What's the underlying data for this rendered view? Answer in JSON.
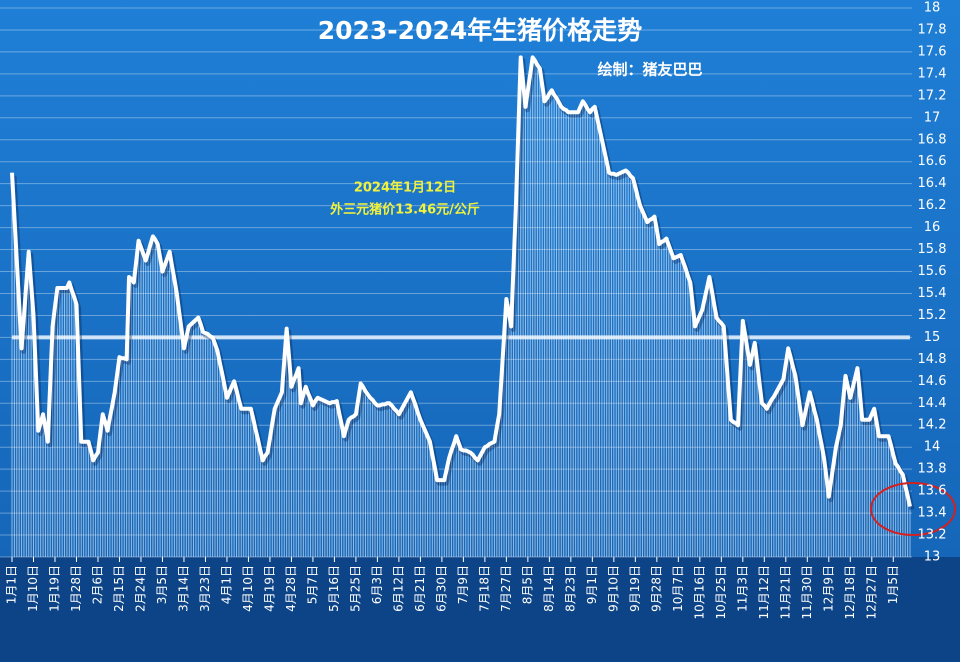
{
  "chart_data": {
    "type": "line",
    "title": "2023-2024年生猪价格走势",
    "subtitle": "绘制：猪友巴巴",
    "annotations": [
      "2024年1月12日",
      "外三元猪价13.46元/公斤"
    ],
    "color": "#ffffff",
    "reference_line": 15,
    "ylim": [
      13,
      18
    ],
    "yticks": [
      13,
      13.2,
      13.4,
      13.6,
      13.8,
      14,
      14.2,
      14.4,
      14.6,
      14.8,
      15,
      15.2,
      15.4,
      15.6,
      15.8,
      16,
      16.2,
      16.4,
      16.6,
      16.8,
      17,
      17.2,
      17.4,
      17.6,
      17.8,
      18
    ],
    "grid": true,
    "categories": [
      "1月1日",
      null,
      null,
      null,
      null,
      null,
      null,
      null,
      null,
      "1月10日",
      null,
      null,
      null,
      null,
      null,
      null,
      null,
      null,
      "1月19日",
      null,
      null,
      null,
      null,
      null,
      null,
      null,
      null,
      "1月28日",
      null,
      null,
      null,
      null,
      null,
      null,
      null,
      null,
      "2月6日",
      null,
      null,
      null,
      null,
      null,
      null,
      null,
      null,
      "2月15日",
      null,
      null,
      null,
      null,
      null,
      null,
      null,
      null,
      "2月24日",
      null,
      null,
      null,
      null,
      null,
      null,
      null,
      null,
      "3月5日",
      null,
      null,
      null,
      null,
      null,
      null,
      null,
      null,
      "3月14日",
      null,
      null,
      null,
      null,
      null,
      null,
      null,
      null,
      "3月23日",
      null,
      null,
      null,
      null,
      null,
      null,
      null,
      null,
      "4月1日",
      null,
      null,
      null,
      null,
      null,
      null,
      null,
      null,
      "4月10日",
      null,
      null,
      null,
      null,
      null,
      null,
      null,
      null,
      "4月19日",
      null,
      null,
      null,
      null,
      null,
      null,
      null,
      null,
      "4月28日",
      null,
      null,
      null,
      null,
      null,
      null,
      null,
      null,
      "5月7日",
      null,
      null,
      null,
      null,
      null,
      null,
      null,
      null,
      "5月16日",
      null,
      null,
      null,
      null,
      null,
      null,
      null,
      null,
      "5月25日",
      null,
      null,
      null,
      null,
      null,
      null,
      null,
      null,
      "6月3日",
      null,
      null,
      null,
      null,
      null,
      null,
      null,
      null,
      "6月12日",
      null,
      null,
      null,
      null,
      null,
      null,
      null,
      null,
      "6月21日",
      null,
      null,
      null,
      null,
      null,
      null,
      null,
      null,
      "6月30日",
      null,
      null,
      null,
      null,
      null,
      null,
      null,
      null,
      "7月9日",
      null,
      null,
      null,
      null,
      null,
      null,
      null,
      null,
      "7月18日",
      null,
      null,
      null,
      null,
      null,
      null,
      null,
      null,
      "7月27日",
      null,
      null,
      null,
      null,
      null,
      null,
      null,
      null,
      "8月5日",
      null,
      null,
      null,
      null,
      null,
      null,
      null,
      null,
      "8月14日",
      null,
      null,
      null,
      null,
      null,
      null,
      null,
      null,
      "8月23日",
      null,
      null,
      null,
      null,
      null,
      null,
      null,
      null,
      "9月1日",
      null,
      null,
      null,
      null,
      null,
      null,
      null,
      null,
      "9月10日",
      null,
      null,
      null,
      null,
      null,
      null,
      null,
      null,
      "9月19日",
      null,
      null,
      null,
      null,
      null,
      null,
      null,
      null,
      "9月28日",
      null,
      null,
      null,
      null,
      null,
      null,
      null,
      null,
      "10月7日",
      null,
      null,
      null,
      null,
      null,
      null,
      null,
      null,
      "10月16日",
      null,
      null,
      null,
      null,
      null,
      null,
      null,
      null,
      "10月25日",
      null,
      null,
      null,
      null,
      null,
      null,
      null,
      null,
      "11月3日",
      null,
      null,
      null,
      null,
      null,
      null,
      null,
      null,
      "11月12日",
      null,
      null,
      null,
      null,
      null,
      null,
      null,
      null,
      "11月21日",
      null,
      null,
      null,
      null,
      null,
      null,
      null,
      null,
      "11月30日",
      null,
      null,
      null,
      null,
      null,
      null,
      null,
      null,
      "12月9日",
      null,
      null,
      null,
      null,
      null,
      null,
      null,
      null,
      "12月18日",
      null,
      null,
      null,
      null,
      null,
      null,
      null,
      null,
      "12月27日",
      null,
      null,
      null,
      null,
      null,
      null,
      null,
      null,
      "1月5日",
      null,
      null,
      null,
      null,
      null,
      null,
      null
    ],
    "values": [
      16.5,
      16.1,
      15.7,
      15.3,
      14.9,
      15.19,
      15.49,
      15.78,
      15.49,
      15.2,
      14.68,
      14.15,
      14.22,
      14.3,
      14.18,
      14.05,
      14.58,
      15.1,
      15.28,
      15.45,
      15.45,
      15.45,
      15.45,
      15.45,
      15.5,
      15.43,
      15.37,
      15.3,
      14.68,
      14.05,
      14.05,
      14.05,
      14.05,
      13.97,
      13.88,
      13.92,
      13.95,
      14.13,
      14.3,
      14.23,
      14.15,
      14.27,
      14.38,
      14.5,
      14.66,
      14.82,
      14.81,
      14.81,
      14.8,
      15.55,
      15.53,
      15.5,
      15.69,
      15.88,
      15.82,
      15.76,
      15.7,
      15.77,
      15.85,
      15.92,
      15.89,
      15.85,
      15.73,
      15.6,
      15.66,
      15.72,
      15.78,
      15.65,
      15.53,
      15.4,
      15.23,
      15.07,
      14.9,
      15,
      15.1,
      15.12,
      15.14,
      15.16,
      15.18,
      15.12,
      15.05,
      15.04,
      15.03,
      15.01,
      15,
      14.94,
      14.88,
      14.77,
      14.67,
      14.56,
      14.45,
      14.5,
      14.55,
      14.6,
      14.52,
      14.43,
      14.35,
      14.35,
      14.35,
      14.35,
      14.35,
      14.26,
      14.16,
      14.07,
      13.97,
      13.88,
      13.92,
      13.95,
      14.08,
      14.22,
      14.35,
      14.4,
      14.45,
      14.5,
      14.79,
      15.08,
      14.82,
      14.55,
      14.61,
      14.66,
      14.72,
      14.4,
      14.48,
      14.55,
      14.49,
      14.44,
      14.38,
      14.42,
      14.45,
      14.44,
      14.43,
      14.42,
      14.41,
      14.4,
      14.41,
      14.41,
      14.42,
      14.31,
      14.21,
      14.1,
      14.18,
      14.25,
      14.27,
      14.28,
      14.3,
      14.44,
      14.58,
      14.55,
      14.51,
      14.48,
      14.45,
      14.43,
      14.4,
      14.38,
      14.38,
      14.39,
      14.39,
      14.4,
      14.4,
      14.38,
      14.35,
      14.33,
      14.3,
      14.34,
      14.38,
      14.42,
      14.46,
      14.5,
      14.44,
      14.38,
      14.31,
      14.25,
      14.2,
      14.15,
      14.1,
      14.05,
      13.93,
      13.82,
      13.7,
      13.7,
      13.7,
      13.7,
      13.8,
      13.9,
      13.97,
      14.03,
      14.1,
      14.04,
      13.98,
      13.97,
      13.97,
      13.96,
      13.95,
      13.93,
      13.9,
      13.88,
      13.92,
      13.96,
      14,
      14.01,
      14.03,
      14.04,
      14.05,
      14.18,
      14.3,
      14.65,
      15,
      15.35,
      15.23,
      15.1,
      15.65,
      16.2,
      16.88,
      17.55,
      17.32,
      17.1,
      17.25,
      17.4,
      17.55,
      17.52,
      17.48,
      17.45,
      17.3,
      17.15,
      17.18,
      17.22,
      17.25,
      17.21,
      17.18,
      17.14,
      17.1,
      17.08,
      17.07,
      17.05,
      17.05,
      17.05,
      17.05,
      17.05,
      17.1,
      17.15,
      17.12,
      17.08,
      17.05,
      17.08,
      17.1,
      17,
      16.9,
      16.8,
      16.7,
      16.6,
      16.5,
      16.49,
      16.49,
      16.48,
      16.49,
      16.5,
      16.51,
      16.52,
      16.5,
      16.47,
      16.45,
      16.37,
      16.28,
      16.2,
      16.15,
      16.1,
      16.05,
      16.07,
      16.08,
      16.1,
      15.98,
      15.85,
      15.87,
      15.88,
      15.9,
      15.84,
      15.78,
      15.72,
      15.73,
      15.74,
      15.75,
      15.69,
      15.63,
      15.56,
      15.5,
      15.3,
      15.1,
      15.15,
      15.2,
      15.25,
      15.35,
      15.45,
      15.55,
      15.43,
      15.3,
      15.18,
      15.15,
      15.13,
      15.1,
      14.82,
      14.53,
      14.25,
      14.23,
      14.22,
      14.2,
      14.68,
      15.15,
      15.02,
      14.88,
      14.75,
      14.85,
      14.95,
      14.77,
      14.58,
      14.4,
      14.38,
      14.35,
      14.39,
      14.43,
      14.46,
      14.5,
      14.54,
      14.58,
      14.62,
      14.76,
      14.9,
      14.82,
      14.73,
      14.65,
      14.5,
      14.35,
      14.2,
      14.3,
      14.4,
      14.5,
      14.42,
      14.33,
      14.25,
      14.13,
      14.02,
      13.9,
      13.73,
      13.55,
      13.7,
      13.85,
      14,
      14.1,
      14.2,
      14.43,
      14.65,
      14.55,
      14.45,
      14.54,
      14.63,
      14.72,
      14.49,
      14.25,
      14.25,
      14.25,
      14.25,
      14.3,
      14.35,
      14.23,
      14.1,
      14.1,
      14.1,
      14.1,
      14.1,
      14.02,
      13.93,
      13.85,
      13.82,
      13.78,
      13.75,
      13.65,
      13.56,
      13.46
    ]
  }
}
